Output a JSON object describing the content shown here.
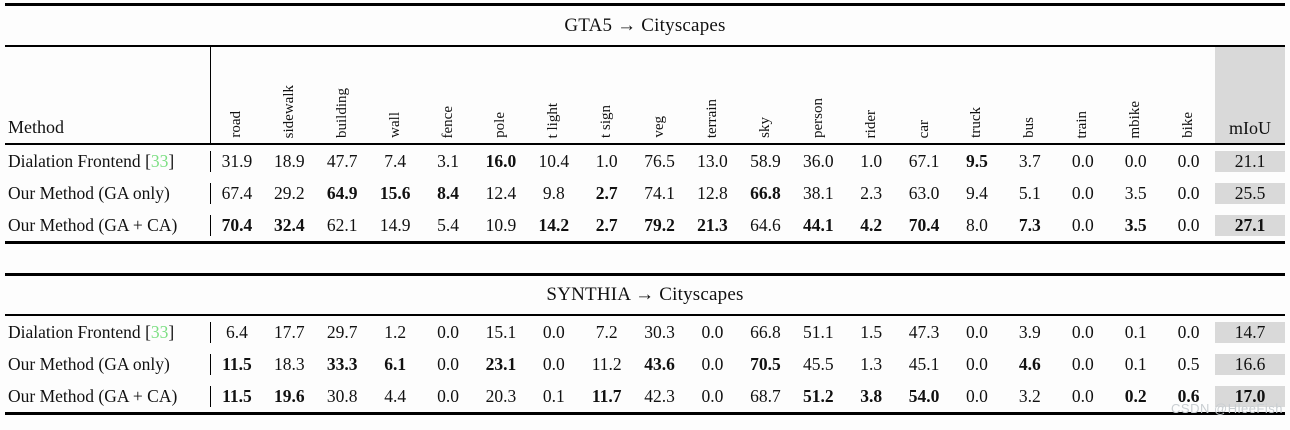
{
  "watermark": "CSDN @HleeFish",
  "colors": {
    "citation_green": "#7ddf84",
    "miou_bg": "#d9d9d9",
    "rule_black": "#000000",
    "watermark_gray": "#c9ced2"
  },
  "method_label": "Method",
  "miou_label": "mIoU",
  "columns": [
    "road",
    "sidewalk",
    "building",
    "wall",
    "fence",
    "pole",
    "t light",
    "t sign",
    "veg",
    "terrain",
    "sky",
    "person",
    "rider",
    "car",
    "truck",
    "bus",
    "train",
    "mbike",
    "bike"
  ],
  "tables": [
    {
      "title": "GTA5 → Cityscapes",
      "has_header": true,
      "rows": [
        {
          "method": "Dialation Frontend",
          "cite": "33",
          "values": [
            "31.9",
            "18.9",
            "47.7",
            "7.4",
            "3.1",
            "16.0",
            "10.4",
            "1.0",
            "76.5",
            "13.0",
            "58.9",
            "36.0",
            "1.0",
            "67.1",
            "9.5",
            "3.7",
            "0.0",
            "0.0",
            "0.0"
          ],
          "bold": [
            0,
            0,
            0,
            0,
            0,
            1,
            0,
            0,
            0,
            0,
            0,
            0,
            0,
            0,
            1,
            0,
            0,
            0,
            0
          ],
          "miou": "21.1",
          "miou_bold": false
        },
        {
          "method": "Our Method (GA only)",
          "cite": null,
          "values": [
            "67.4",
            "29.2",
            "64.9",
            "15.6",
            "8.4",
            "12.4",
            "9.8",
            "2.7",
            "74.1",
            "12.8",
            "66.8",
            "38.1",
            "2.3",
            "63.0",
            "9.4",
            "5.1",
            "0.0",
            "3.5",
            "0.0"
          ],
          "bold": [
            0,
            0,
            1,
            1,
            1,
            0,
            0,
            1,
            0,
            0,
            1,
            0,
            0,
            0,
            0,
            0,
            0,
            0,
            0
          ],
          "miou": "25.5",
          "miou_bold": false
        },
        {
          "method": "Our Method (GA + CA)",
          "cite": null,
          "values": [
            "70.4",
            "32.4",
            "62.1",
            "14.9",
            "5.4",
            "10.9",
            "14.2",
            "2.7",
            "79.2",
            "21.3",
            "64.6",
            "44.1",
            "4.2",
            "70.4",
            "8.0",
            "7.3",
            "0.0",
            "3.5",
            "0.0"
          ],
          "bold": [
            1,
            1,
            0,
            0,
            0,
            0,
            1,
            1,
            1,
            1,
            0,
            1,
            1,
            1,
            0,
            1,
            0,
            1,
            0
          ],
          "miou": "27.1",
          "miou_bold": true
        }
      ]
    },
    {
      "title": "SYNTHIA → Cityscapes",
      "has_header": false,
      "rows": [
        {
          "method": "Dialation Frontend",
          "cite": "33",
          "values": [
            "6.4",
            "17.7",
            "29.7",
            "1.2",
            "0.0",
            "15.1",
            "0.0",
            "7.2",
            "30.3",
            "0.0",
            "66.8",
            "51.1",
            "1.5",
            "47.3",
            "0.0",
            "3.9",
            "0.0",
            "0.1",
            "0.0"
          ],
          "bold": [
            0,
            0,
            0,
            0,
            0,
            0,
            0,
            0,
            0,
            0,
            0,
            0,
            0,
            0,
            0,
            0,
            0,
            0,
            0
          ],
          "miou": "14.7",
          "miou_bold": false
        },
        {
          "method": "Our Method (GA only)",
          "cite": null,
          "values": [
            "11.5",
            "18.3",
            "33.3",
            "6.1",
            "0.0",
            "23.1",
            "0.0",
            "11.2",
            "43.6",
            "0.0",
            "70.5",
            "45.5",
            "1.3",
            "45.1",
            "0.0",
            "4.6",
            "0.0",
            "0.1",
            "0.5"
          ],
          "bold": [
            1,
            0,
            1,
            1,
            0,
            1,
            0,
            0,
            1,
            0,
            1,
            0,
            0,
            0,
            0,
            1,
            0,
            0,
            0
          ],
          "miou": "16.6",
          "miou_bold": false
        },
        {
          "method": "Our Method (GA + CA)",
          "cite": null,
          "values": [
            "11.5",
            "19.6",
            "30.8",
            "4.4",
            "0.0",
            "20.3",
            "0.1",
            "11.7",
            "42.3",
            "0.0",
            "68.7",
            "51.2",
            "3.8",
            "54.0",
            "0.0",
            "3.2",
            "0.0",
            "0.2",
            "0.6"
          ],
          "bold": [
            1,
            1,
            0,
            0,
            0,
            0,
            0,
            1,
            0,
            0,
            0,
            1,
            1,
            1,
            0,
            0,
            0,
            1,
            1
          ],
          "miou": "17.0",
          "miou_bold": true
        }
      ]
    }
  ]
}
